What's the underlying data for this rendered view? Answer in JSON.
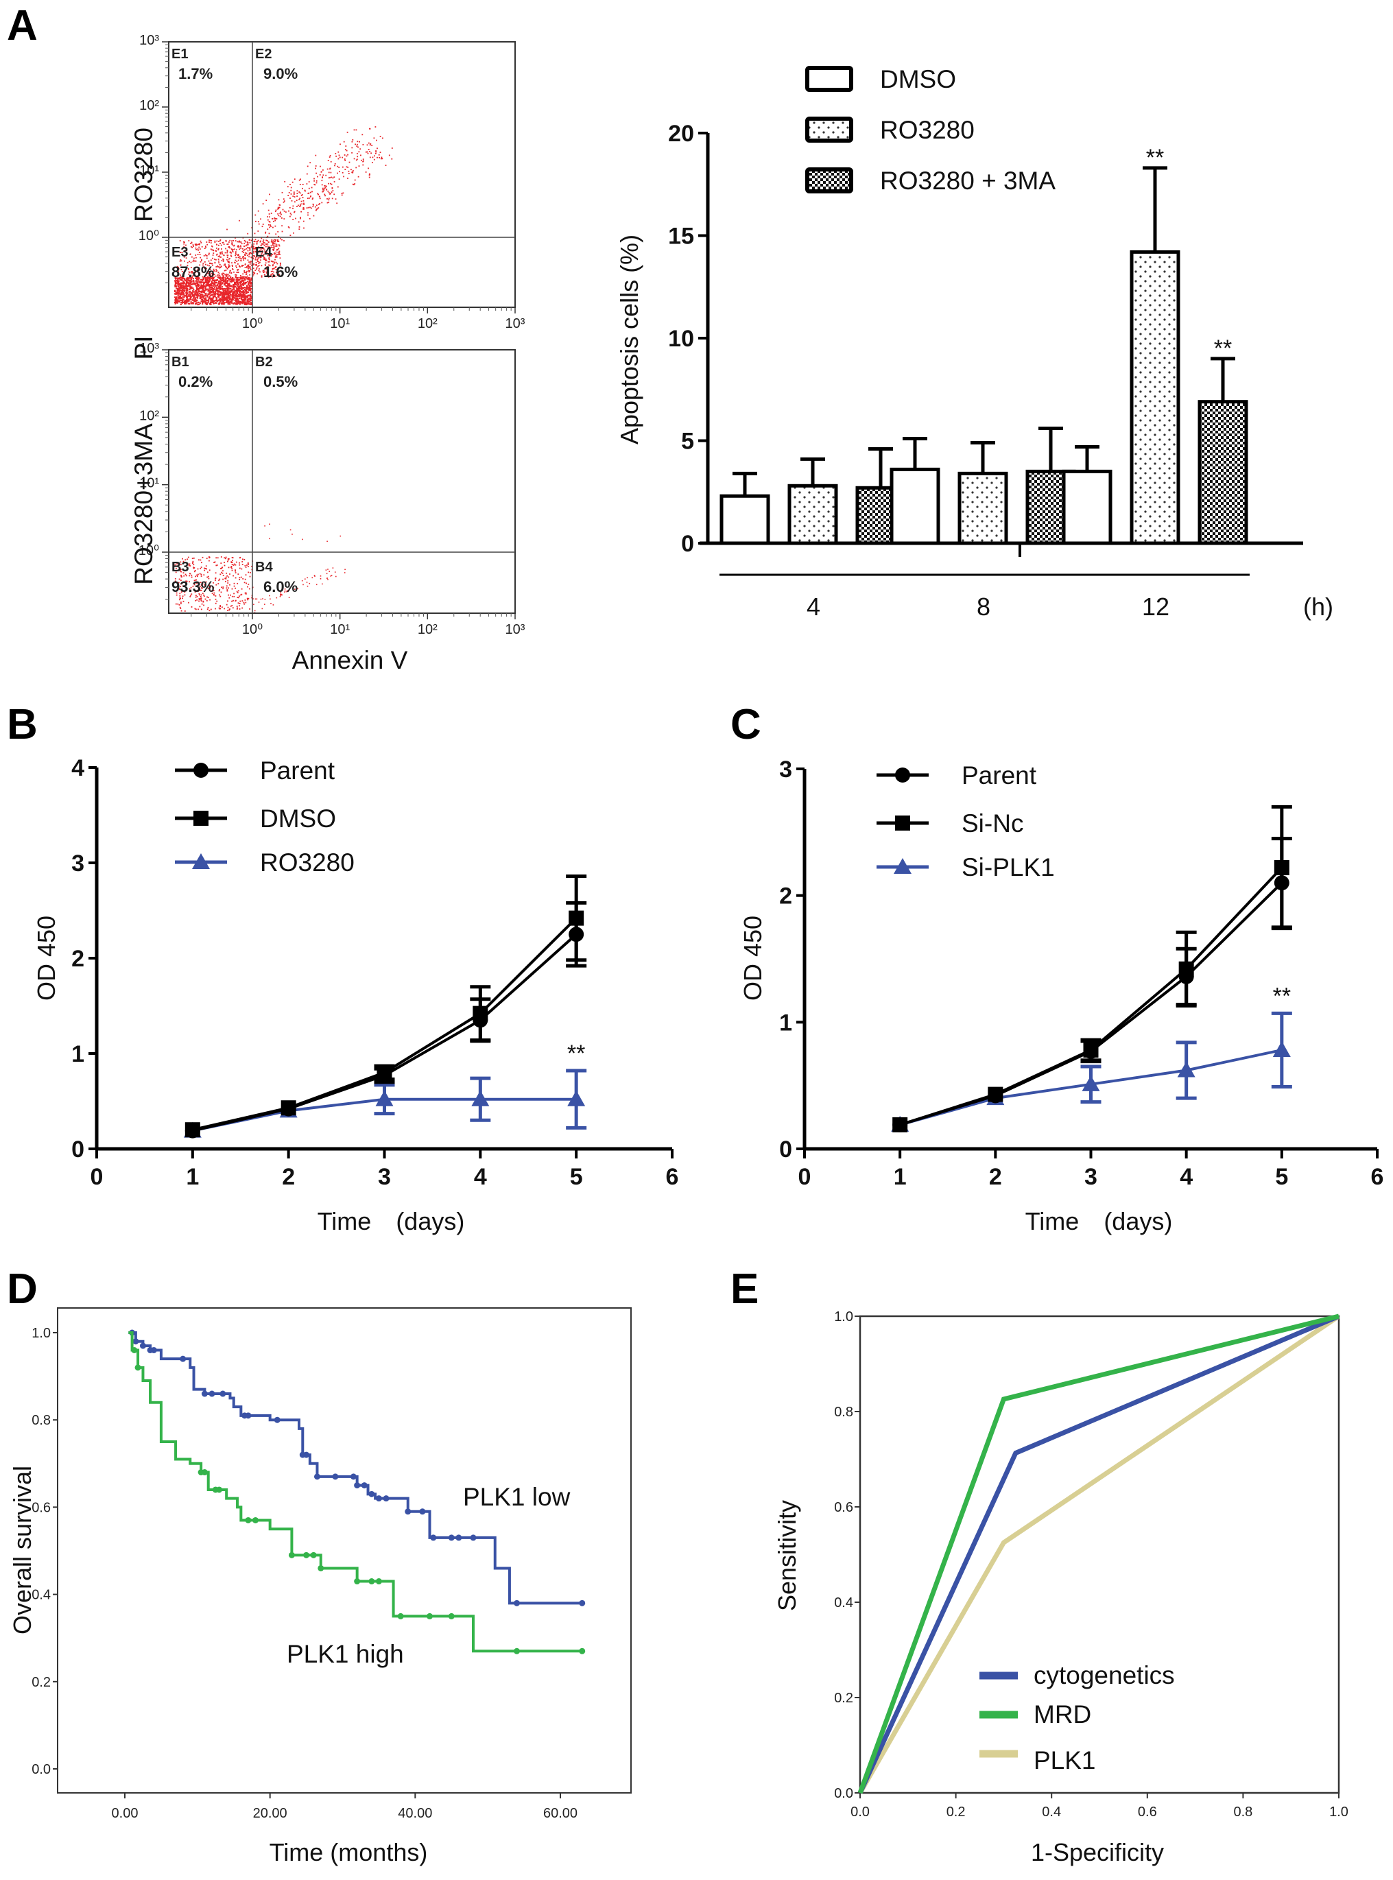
{
  "panels": {
    "A": {
      "label": "A"
    },
    "B": {
      "label": "B"
    },
    "C": {
      "label": "C"
    },
    "D": {
      "label": "D"
    },
    "E": {
      "label": "E"
    }
  },
  "colors": {
    "flow_dots": "#e8262b",
    "blue": "#3a52a5",
    "green": "#34b34a",
    "khaki": "#d8cf93",
    "black": "#000000"
  },
  "chart_data": [
    {
      "id": "A-flow",
      "type": "scatter",
      "title": "",
      "xlabel": "Annexin V",
      "ylabel_shared": "PI",
      "x_scale": "log",
      "y_scale": "log",
      "xlim": [
        0.1,
        1000
      ],
      "ylim": [
        0.1,
        1000
      ],
      "x_ticks": [
        "10⁰",
        "10¹",
        "10²",
        "10³"
      ],
      "y_ticks": [
        "10⁰",
        "10¹",
        "10²",
        "10³"
      ],
      "plots": [
        {
          "row_label": "RO3280",
          "quadrants": [
            {
              "name": "E1",
              "percent": "1.7%"
            },
            {
              "name": "E2",
              "percent": "9.0%"
            },
            {
              "name": "E3",
              "percent": "87.8%"
            },
            {
              "name": "E4",
              "percent": "1.6%"
            }
          ]
        },
        {
          "row_label": "RO3280+3MA",
          "quadrants": [
            {
              "name": "B1",
              "percent": "0.2%"
            },
            {
              "name": "B2",
              "percent": "0.5%"
            },
            {
              "name": "B3",
              "percent": "93.3%"
            },
            {
              "name": "B4",
              "percent": "6.0%"
            }
          ]
        }
      ]
    },
    {
      "id": "A-bar",
      "type": "bar",
      "title": "",
      "xlabel": "(h)",
      "ylabel": "Apoptosis cells (%)",
      "ylim": [
        0,
        20
      ],
      "y_ticks": [
        0,
        5,
        10,
        15,
        20
      ],
      "categories": [
        "4",
        "8",
        "12"
      ],
      "series": [
        {
          "name": "DMSO",
          "pattern": "open",
          "values": [
            2.3,
            3.6,
            3.5
          ],
          "error_upper": [
            3.4,
            5.1,
            4.7
          ]
        },
        {
          "name": "RO3280",
          "pattern": "dots",
          "values": [
            2.8,
            3.4,
            14.2
          ],
          "error_upper": [
            4.1,
            4.9,
            18.3
          ]
        },
        {
          "name": "RO3280 + 3MA",
          "pattern": "checker",
          "values": [
            2.7,
            3.5,
            6.9
          ],
          "error_upper": [
            4.6,
            5.6,
            9.0
          ]
        }
      ],
      "annotations": [
        {
          "category": "12",
          "series": "RO3280",
          "text": "**"
        },
        {
          "category": "12",
          "series": "RO3280 + 3MA",
          "text": "**"
        }
      ],
      "legend": "top"
    },
    {
      "id": "B",
      "type": "line",
      "title": "",
      "xlabel": "Time　(days)",
      "ylabel": "OD 450",
      "xlim": [
        0,
        6
      ],
      "ylim": [
        0,
        4
      ],
      "x_ticks": [
        0,
        1,
        2,
        3,
        4,
        5,
        6
      ],
      "y_ticks": [
        0,
        1,
        2,
        3,
        4
      ],
      "x": [
        1,
        2,
        3,
        4,
        5
      ],
      "series": [
        {
          "name": "Parent",
          "marker": "circle",
          "color": "#000000",
          "values": [
            0.19,
            0.42,
            0.77,
            1.35,
            2.25
          ],
          "err": [
            0.02,
            0.03,
            0.07,
            0.22,
            0.33
          ]
        },
        {
          "name": "DMSO",
          "marker": "square",
          "color": "#000000",
          "values": [
            0.2,
            0.43,
            0.8,
            1.42,
            2.42
          ],
          "err": [
            0.02,
            0.03,
            0.07,
            0.28,
            0.44
          ]
        },
        {
          "name": "RO3280",
          "marker": "triangle",
          "color": "#3a52a5",
          "values": [
            0.19,
            0.4,
            0.52,
            0.52,
            0.52
          ],
          "err": [
            0.02,
            0.03,
            0.15,
            0.22,
            0.3
          ]
        }
      ],
      "annotations": [
        {
          "x": 5,
          "text": "**"
        }
      ],
      "legend": "top-left"
    },
    {
      "id": "C",
      "type": "line",
      "title": "",
      "xlabel": "Time　(days)",
      "ylabel": "OD 450",
      "xlim": [
        0,
        6
      ],
      "ylim": [
        0,
        3
      ],
      "x_ticks": [
        0,
        1,
        2,
        3,
        4,
        5,
        6
      ],
      "y_ticks": [
        0,
        1,
        2,
        3
      ],
      "x": [
        1,
        2,
        3,
        4,
        5
      ],
      "series": [
        {
          "name": "Parent",
          "marker": "circle",
          "color": "#000000",
          "values": [
            0.19,
            0.42,
            0.77,
            1.36,
            2.1
          ],
          "err": [
            0.02,
            0.03,
            0.08,
            0.22,
            0.35
          ]
        },
        {
          "name": "Si-Nc",
          "marker": "square",
          "color": "#000000",
          "values": [
            0.19,
            0.43,
            0.78,
            1.42,
            2.22
          ],
          "err": [
            0.02,
            0.03,
            0.08,
            0.29,
            0.48
          ]
        },
        {
          "name": "Si-PLK1",
          "marker": "triangle",
          "color": "#3a52a5",
          "values": [
            0.19,
            0.4,
            0.51,
            0.62,
            0.78
          ],
          "err": [
            0.02,
            0.03,
            0.14,
            0.22,
            0.29
          ]
        }
      ],
      "annotations": [
        {
          "x": 5,
          "text": "**"
        }
      ],
      "legend": "top-left"
    },
    {
      "id": "D",
      "type": "line",
      "subtype": "kaplan-meier",
      "title": "",
      "xlabel": "Time (months)",
      "ylabel": "Overall survival",
      "xlim": [
        -5,
        75
      ],
      "ylim": [
        -0.05,
        1.08
      ],
      "x_ticks": [
        "0.00",
        "20.00",
        "40.00",
        "60.00"
      ],
      "x_tick_values": [
        0,
        20,
        40,
        60
      ],
      "y_ticks": [
        "0.0",
        "0.2",
        "0.4",
        "0.6",
        "0.8",
        "1.0"
      ],
      "y_tick_values": [
        0,
        0.2,
        0.4,
        0.6,
        0.8,
        1.0
      ],
      "series": [
        {
          "name": "PLK1 low",
          "color": "#3a52a5",
          "steps": [
            [
              0.5,
              1.0
            ],
            [
              1.5,
              0.98
            ],
            [
              2.5,
              0.97
            ],
            [
              3.5,
              0.96
            ],
            [
              5,
              0.94
            ],
            [
              9,
              0.92
            ],
            [
              9.5,
              0.87
            ],
            [
              11,
              0.86
            ],
            [
              14.5,
              0.85
            ],
            [
              15,
              0.83
            ],
            [
              16,
              0.81
            ],
            [
              20,
              0.8
            ],
            [
              24,
              0.78
            ],
            [
              24.5,
              0.72
            ],
            [
              25.5,
              0.7
            ],
            [
              26.5,
              0.67
            ],
            [
              32,
              0.65
            ],
            [
              33.5,
              0.63
            ],
            [
              34.5,
              0.62
            ],
            [
              39,
              0.59
            ],
            [
              42,
              0.53
            ],
            [
              51,
              0.46
            ],
            [
              53,
              0.38
            ],
            [
              63,
              0.38
            ]
          ],
          "censored": [
            1,
            1.5,
            2.5,
            3.5,
            4,
            8,
            11,
            12,
            13.5,
            16.5,
            17,
            21,
            24.5,
            25,
            26.5,
            29,
            31.5,
            32,
            33,
            34,
            35,
            36,
            39,
            41,
            42.5,
            45,
            46,
            48,
            54,
            63
          ]
        },
        {
          "name": "PLK1 high",
          "color": "#34b34a",
          "steps": [
            [
              0.5,
              1.0
            ],
            [
              1,
              0.96
            ],
            [
              1.8,
              0.92
            ],
            [
              2.5,
              0.89
            ],
            [
              3.5,
              0.84
            ],
            [
              5,
              0.75
            ],
            [
              7,
              0.71
            ],
            [
              9,
              0.7
            ],
            [
              10.5,
              0.68
            ],
            [
              11.5,
              0.64
            ],
            [
              14,
              0.62
            ],
            [
              15.5,
              0.6
            ],
            [
              16,
              0.57
            ],
            [
              20,
              0.55
            ],
            [
              23,
              0.49
            ],
            [
              27,
              0.46
            ],
            [
              32,
              0.43
            ],
            [
              37,
              0.35
            ],
            [
              48,
              0.27
            ],
            [
              63,
              0.27
            ]
          ],
          "censored": [
            1.3,
            1.8,
            10.5,
            11,
            12.5,
            13,
            17,
            18,
            23,
            25,
            26,
            27,
            32,
            34,
            35,
            38,
            42,
            45,
            54,
            63
          ]
        }
      ],
      "annotations": [
        {
          "text": "PLK1 low"
        },
        {
          "text": "PLK1 high"
        }
      ]
    },
    {
      "id": "E",
      "type": "line",
      "subtype": "roc",
      "title": "",
      "xlabel": "1-Specificity",
      "ylabel": "Sensitivity",
      "xlim": [
        0,
        1
      ],
      "ylim": [
        0,
        1
      ],
      "x_ticks": [
        "0.0",
        "0.2",
        "0.4",
        "0.6",
        "0.8",
        "1.0"
      ],
      "y_ticks": [
        "0.0",
        "0.2",
        "0.4",
        "0.6",
        "0.8",
        "1.0"
      ],
      "series": [
        {
          "name": "cytogenetics",
          "color": "#3a52a5",
          "points": [
            [
              0,
              0
            ],
            [
              0.325,
              0.713
            ],
            [
              1,
              1
            ]
          ]
        },
        {
          "name": "MRD",
          "color": "#34b34a",
          "points": [
            [
              0,
              0
            ],
            [
              0.3,
              0.826
            ],
            [
              1,
              1
            ]
          ]
        },
        {
          "name": "PLK1",
          "color": "#d8cf93",
          "points": [
            [
              0,
              0
            ],
            [
              0.3,
              0.525
            ],
            [
              1,
              1
            ]
          ]
        }
      ],
      "legend": "bottom-right"
    }
  ]
}
